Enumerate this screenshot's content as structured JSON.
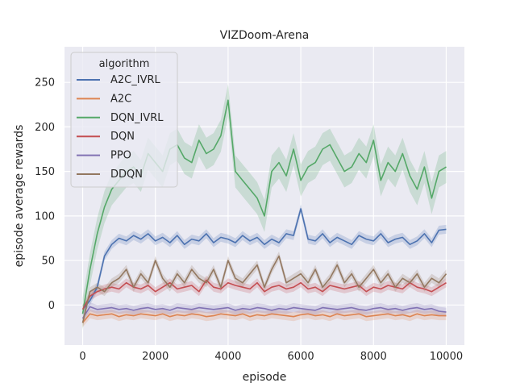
{
  "chart_data": {
    "type": "line",
    "title": "VIZDoom-Arena",
    "xlabel": "episode",
    "ylabel": "episode average rewards",
    "xlim": [
      -500,
      10500
    ],
    "ylim": [
      -45,
      290
    ],
    "xticks": [
      0,
      2000,
      4000,
      6000,
      8000,
      10000
    ],
    "yticks": [
      0,
      50,
      100,
      150,
      200,
      250
    ],
    "grid": true,
    "legend": {
      "title": "algorithm",
      "placement": "upper-left"
    },
    "x": [
      0,
      200,
      400,
      600,
      800,
      1000,
      1200,
      1400,
      1600,
      1800,
      2000,
      2200,
      2400,
      2600,
      2800,
      3000,
      3200,
      3400,
      3600,
      3800,
      4000,
      4200,
      4400,
      4600,
      4800,
      5000,
      5200,
      5400,
      5600,
      5800,
      6000,
      6200,
      6400,
      6600,
      6800,
      7000,
      7200,
      7400,
      7600,
      7800,
      8000,
      8200,
      8400,
      8600,
      8800,
      9000,
      9200,
      9400,
      9600,
      9800,
      10000
    ],
    "series": [
      {
        "name": "A2C_IVRL",
        "color": "#4c72b0",
        "values": [
          -5,
          5,
          20,
          55,
          68,
          75,
          72,
          78,
          74,
          80,
          72,
          76,
          70,
          78,
          68,
          74,
          72,
          80,
          70,
          76,
          74,
          70,
          78,
          72,
          76,
          68,
          74,
          70,
          80,
          78,
          108,
          74,
          72,
          80,
          70,
          76,
          72,
          68,
          78,
          74,
          72,
          80,
          70,
          74,
          76,
          68,
          72,
          80,
          70,
          84,
          85
        ]
      },
      {
        "name": "A2C",
        "color": "#dd8452",
        "values": [
          -20,
          -10,
          -12,
          -11,
          -10,
          -13,
          -11,
          -12,
          -10,
          -11,
          -12,
          -10,
          -13,
          -11,
          -12,
          -10,
          -11,
          -13,
          -12,
          -10,
          -11,
          -12,
          -10,
          -13,
          -11,
          -12,
          -10,
          -11,
          -12,
          -13,
          -11,
          -10,
          -12,
          -11,
          -13,
          -10,
          -12,
          -11,
          -10,
          -13,
          -12,
          -11,
          -10,
          -12,
          -11,
          -13,
          -10,
          -12,
          -11,
          -12,
          -12
        ]
      },
      {
        "name": "DQN_IVRL",
        "color": "#55a868",
        "values": [
          -10,
          40,
          80,
          110,
          130,
          140,
          150,
          155,
          145,
          170,
          160,
          150,
          175,
          180,
          165,
          160,
          185,
          170,
          175,
          190,
          230,
          150,
          140,
          130,
          120,
          100,
          150,
          160,
          145,
          175,
          140,
          155,
          160,
          175,
          180,
          165,
          150,
          155,
          170,
          160,
          185,
          140,
          160,
          150,
          170,
          145,
          130,
          155,
          120,
          150,
          155
        ]
      },
      {
        "name": "DQN",
        "color": "#c44e52",
        "values": [
          -5,
          10,
          15,
          18,
          20,
          18,
          25,
          20,
          18,
          22,
          15,
          20,
          25,
          18,
          20,
          22,
          15,
          28,
          20,
          18,
          25,
          22,
          20,
          18,
          25,
          15,
          20,
          22,
          18,
          20,
          25,
          18,
          20,
          15,
          22,
          20,
          18,
          20,
          22,
          15,
          20,
          18,
          22,
          20,
          18,
          25,
          20,
          18,
          15,
          20,
          25
        ]
      },
      {
        "name": "PPO",
        "color": "#8172b3",
        "values": [
          -15,
          -2,
          -5,
          -4,
          -3,
          -5,
          -4,
          -6,
          -4,
          -3,
          -5,
          -4,
          -6,
          -3,
          -4,
          -5,
          -3,
          -4,
          -5,
          -4,
          -3,
          -6,
          -4,
          -5,
          -3,
          -4,
          -6,
          -4,
          -5,
          -3,
          -4,
          -5,
          -6,
          -3,
          -4,
          -5,
          -4,
          -3,
          -5,
          -6,
          -4,
          -3,
          -5,
          -4,
          -6,
          -4,
          -3,
          -5,
          -4,
          -7,
          -8
        ]
      },
      {
        "name": "DDQN",
        "color": "#937860",
        "values": [
          -20,
          15,
          20,
          15,
          25,
          30,
          40,
          20,
          35,
          25,
          50,
          30,
          20,
          35,
          25,
          40,
          30,
          25,
          40,
          20,
          50,
          30,
          25,
          35,
          45,
          20,
          40,
          55,
          25,
          30,
          35,
          25,
          40,
          20,
          30,
          45,
          25,
          35,
          20,
          30,
          40,
          25,
          35,
          20,
          30,
          25,
          35,
          20,
          30,
          25,
          35
        ]
      }
    ]
  }
}
